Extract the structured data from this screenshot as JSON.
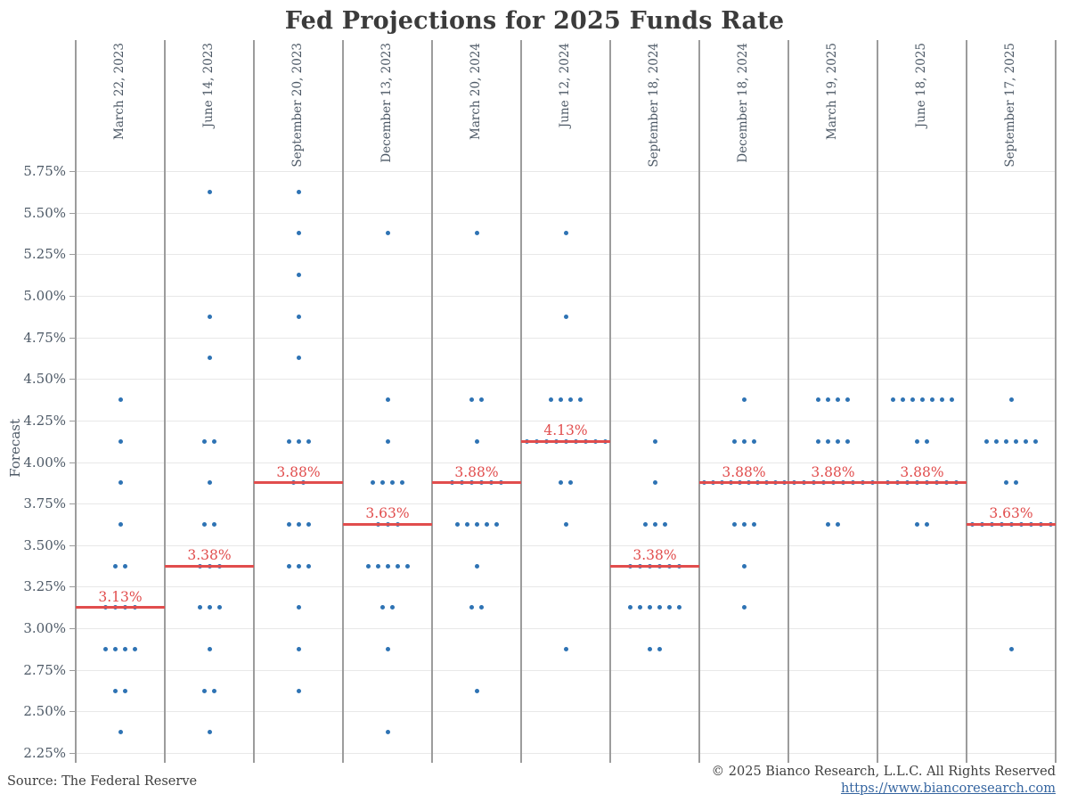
{
  "title": "Fed Projections for 2025 Funds Rate",
  "footer": {
    "source": "Source: The Federal Reserve",
    "copyright": "© 2025 Bianco Research, L.L.C. All Rights Reserved",
    "link": "https://www.biancoresearch.com"
  },
  "colors": {
    "dot": "#2e73b4",
    "median": "#e14d4d",
    "title_text": "#3b3b3b",
    "axis_text": "#4d5966",
    "gridline": "#e8e8e8",
    "separator": "#9c9c9c",
    "link": "#3565a0"
  },
  "chart_data": {
    "type": "scatter",
    "subtype": "fomc-dot-plot",
    "title": "Fed Projections for 2025 Funds Rate",
    "xlabel": "",
    "ylabel": "Forecast",
    "ylim": [
      2.25,
      5.75
    ],
    "grid": true,
    "y_tick_values": [
      5.75,
      5.5,
      5.25,
      5.0,
      4.75,
      4.5,
      4.25,
      4.0,
      3.75,
      3.5,
      3.25,
      3.0,
      2.75,
      2.5,
      2.25
    ],
    "y_tick_labels": [
      "5.75%",
      "5.50%",
      "5.25%",
      "5.00%",
      "4.75%",
      "4.50%",
      "4.25%",
      "4.00%",
      "3.75%",
      "3.50%",
      "3.25%",
      "3.00%",
      "2.75%",
      "2.50%",
      "2.25%"
    ],
    "columns": [
      {
        "label": "March 22, 2023",
        "median": 3.125,
        "median_label": "3.13%",
        "dots": [
          {
            "rate": 4.375,
            "count": 1
          },
          {
            "rate": 4.125,
            "count": 1
          },
          {
            "rate": 3.875,
            "count": 1
          },
          {
            "rate": 3.625,
            "count": 1
          },
          {
            "rate": 3.375,
            "count": 2
          },
          {
            "rate": 3.125,
            "count": 4
          },
          {
            "rate": 2.875,
            "count": 4
          },
          {
            "rate": 2.625,
            "count": 2
          },
          {
            "rate": 2.375,
            "count": 1
          }
        ]
      },
      {
        "label": "June 14, 2023",
        "median": 3.375,
        "median_label": "3.38%",
        "dots": [
          {
            "rate": 5.625,
            "count": 1
          },
          {
            "rate": 4.875,
            "count": 1
          },
          {
            "rate": 4.625,
            "count": 1
          },
          {
            "rate": 4.125,
            "count": 2
          },
          {
            "rate": 3.875,
            "count": 1
          },
          {
            "rate": 3.625,
            "count": 2
          },
          {
            "rate": 3.375,
            "count": 3
          },
          {
            "rate": 3.125,
            "count": 3
          },
          {
            "rate": 2.875,
            "count": 1
          },
          {
            "rate": 2.625,
            "count": 2
          },
          {
            "rate": 2.375,
            "count": 1
          }
        ]
      },
      {
        "label": "September 20, 2023",
        "median": 3.875,
        "median_label": "3.88%",
        "dots": [
          {
            "rate": 5.625,
            "count": 1
          },
          {
            "rate": 5.375,
            "count": 1
          },
          {
            "rate": 5.125,
            "count": 1
          },
          {
            "rate": 4.875,
            "count": 1
          },
          {
            "rate": 4.625,
            "count": 1
          },
          {
            "rate": 4.125,
            "count": 3
          },
          {
            "rate": 3.875,
            "count": 2
          },
          {
            "rate": 3.625,
            "count": 3
          },
          {
            "rate": 3.375,
            "count": 3
          },
          {
            "rate": 3.125,
            "count": 1
          },
          {
            "rate": 2.875,
            "count": 1
          },
          {
            "rate": 2.625,
            "count": 1
          }
        ]
      },
      {
        "label": "December 13, 2023",
        "median": 3.625,
        "median_label": "3.63%",
        "dots": [
          {
            "rate": 5.375,
            "count": 1
          },
          {
            "rate": 4.375,
            "count": 1
          },
          {
            "rate": 4.125,
            "count": 1
          },
          {
            "rate": 3.875,
            "count": 4
          },
          {
            "rate": 3.625,
            "count": 3
          },
          {
            "rate": 3.375,
            "count": 5
          },
          {
            "rate": 3.125,
            "count": 2
          },
          {
            "rate": 2.875,
            "count": 1
          },
          {
            "rate": 2.375,
            "count": 1
          }
        ]
      },
      {
        "label": "March 20, 2024",
        "median": 3.875,
        "median_label": "3.88%",
        "dots": [
          {
            "rate": 5.375,
            "count": 1
          },
          {
            "rate": 4.375,
            "count": 2
          },
          {
            "rate": 4.125,
            "count": 1
          },
          {
            "rate": 3.875,
            "count": 6
          },
          {
            "rate": 3.625,
            "count": 5
          },
          {
            "rate": 3.375,
            "count": 1
          },
          {
            "rate": 3.125,
            "count": 2
          },
          {
            "rate": 2.625,
            "count": 1
          }
        ]
      },
      {
        "label": "June 12, 2024",
        "median": 4.125,
        "median_label": "4.13%",
        "dots": [
          {
            "rate": 5.375,
            "count": 1
          },
          {
            "rate": 4.875,
            "count": 1
          },
          {
            "rate": 4.375,
            "count": 4
          },
          {
            "rate": 4.125,
            "count": 9
          },
          {
            "rate": 3.875,
            "count": 2
          },
          {
            "rate": 3.625,
            "count": 1
          },
          {
            "rate": 2.875,
            "count": 1
          }
        ]
      },
      {
        "label": "September 18, 2024",
        "median": 3.375,
        "median_label": "3.38%",
        "dots": [
          {
            "rate": 4.125,
            "count": 1
          },
          {
            "rate": 3.875,
            "count": 1
          },
          {
            "rate": 3.625,
            "count": 3
          },
          {
            "rate": 3.375,
            "count": 6
          },
          {
            "rate": 3.125,
            "count": 6
          },
          {
            "rate": 2.875,
            "count": 2
          }
        ]
      },
      {
        "label": "December 18, 2024",
        "median": 3.875,
        "median_label": "3.88%",
        "dots": [
          {
            "rate": 4.375,
            "count": 1
          },
          {
            "rate": 4.125,
            "count": 3
          },
          {
            "rate": 3.875,
            "count": 10
          },
          {
            "rate": 3.625,
            "count": 3
          },
          {
            "rate": 3.375,
            "count": 1
          },
          {
            "rate": 3.125,
            "count": 1
          }
        ]
      },
      {
        "label": "March 19, 2025",
        "median": 3.875,
        "median_label": "3.88%",
        "dots": [
          {
            "rate": 4.375,
            "count": 4
          },
          {
            "rate": 4.125,
            "count": 4
          },
          {
            "rate": 3.875,
            "count": 9
          },
          {
            "rate": 3.625,
            "count": 2
          }
        ]
      },
      {
        "label": "June 18, 2025",
        "median": 3.875,
        "median_label": "3.88%",
        "dots": [
          {
            "rate": 4.375,
            "count": 7
          },
          {
            "rate": 4.125,
            "count": 2
          },
          {
            "rate": 3.875,
            "count": 8
          },
          {
            "rate": 3.625,
            "count": 2
          }
        ]
      },
      {
        "label": "September 17, 2025",
        "median": 3.625,
        "median_label": "3.63%",
        "dots": [
          {
            "rate": 4.375,
            "count": 1
          },
          {
            "rate": 4.125,
            "count": 6
          },
          {
            "rate": 3.875,
            "count": 2
          },
          {
            "rate": 3.625,
            "count": 9
          },
          {
            "rate": 2.875,
            "count": 1
          }
        ]
      }
    ]
  }
}
